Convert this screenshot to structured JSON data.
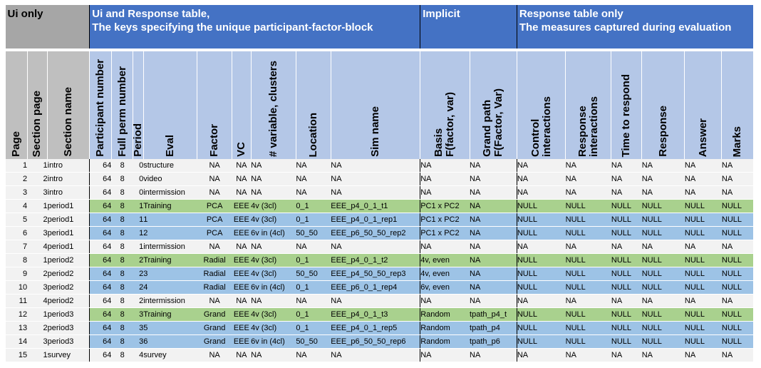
{
  "groups": {
    "ui_only": "Ui only",
    "keys_line1": "Ui and Response table,",
    "keys_line2": "The keys specifying the unique participant-factor-block",
    "implicit": "Implicit",
    "response_line1": "Response table only",
    "response_line2": "The measures captured during evaluation"
  },
  "columns": [
    {
      "key": "page",
      "label": "Page"
    },
    {
      "key": "section_page",
      "label": "Section page"
    },
    {
      "key": "section_name",
      "label": "Section name"
    },
    {
      "key": "participant",
      "label": "Participant number"
    },
    {
      "key": "full_perm",
      "label": "Full perm number"
    },
    {
      "key": "period",
      "label": "Period"
    },
    {
      "key": "eval",
      "label": "Eval"
    },
    {
      "key": "factor",
      "label": "Factor"
    },
    {
      "key": "vc",
      "label": "VC"
    },
    {
      "key": "var_clusters",
      "label": "# variable, clusters"
    },
    {
      "key": "location",
      "label": "Location"
    },
    {
      "key": "sim_name",
      "label": "Sim name"
    },
    {
      "key": "basis",
      "label": "Basis\nF(factor, var)"
    },
    {
      "key": "grand_path",
      "label": "Grand path\nF(Factor, Var)"
    },
    {
      "key": "control",
      "label": "Control\ninteractions"
    },
    {
      "key": "response_int",
      "label": "Response\ninteractions"
    },
    {
      "key": "time",
      "label": "Time to respond"
    },
    {
      "key": "response",
      "label": "Response"
    },
    {
      "key": "answer",
      "label": "Answer"
    },
    {
      "key": "marks",
      "label": "Marks"
    }
  ],
  "rows": [
    {
      "kind": "plain",
      "cells": [
        "1",
        "1",
        "intro",
        "64",
        "8",
        "0",
        "structure",
        "NA",
        "NA",
        "NA",
        "NA",
        "NA",
        "NA",
        "NA",
        "NA",
        "NA",
        "NA",
        "NA",
        "NA",
        "NA"
      ]
    },
    {
      "kind": "plain",
      "cells": [
        "2",
        "2",
        "intro",
        "64",
        "8",
        "0",
        "video",
        "NA",
        "NA",
        "NA",
        "NA",
        "NA",
        "NA",
        "NA",
        "NA",
        "NA",
        "NA",
        "NA",
        "NA",
        "NA"
      ]
    },
    {
      "kind": "plain",
      "cells": [
        "3",
        "3",
        "intro",
        "64",
        "8",
        "0",
        "intermission",
        "NA",
        "NA",
        "NA",
        "NA",
        "NA",
        "NA",
        "NA",
        "NA",
        "NA",
        "NA",
        "NA",
        "NA",
        "NA"
      ]
    },
    {
      "kind": "train",
      "cells": [
        "4",
        "1",
        "period1",
        "64",
        "8",
        "1",
        "Training",
        "PCA",
        "EEE",
        "4v (3cl)",
        "0_1",
        "EEE_p4_0_1_t1",
        "PC1 x PC2",
        "NA",
        "NULL",
        "NULL",
        "NULL",
        "NULL",
        "NULL",
        "NULL"
      ]
    },
    {
      "kind": "eval",
      "cells": [
        "5",
        "2",
        "period1",
        "64",
        "8",
        "1",
        "1",
        "PCA",
        "EEE",
        "4v (3cl)",
        "0_1",
        "EEE_p4_0_1_rep1",
        "PC1 x PC2",
        "NA",
        "NULL",
        "NULL",
        "NULL",
        "NULL",
        "NULL",
        "NULL"
      ]
    },
    {
      "kind": "eval",
      "cells": [
        "6",
        "3",
        "period1",
        "64",
        "8",
        "1",
        "2",
        "PCA",
        "EEE",
        "6v in (4cl)",
        "50_50",
        "EEE_p6_50_50_rep2",
        "PC1 x PC2",
        "NA",
        "NULL",
        "NULL",
        "NULL",
        "NULL",
        "NULL",
        "NULL"
      ]
    },
    {
      "kind": "plain",
      "cells": [
        "7",
        "4",
        "period1",
        "64",
        "8",
        "1",
        "intermission",
        "NA",
        "NA",
        "NA",
        "NA",
        "NA",
        "NA",
        "NA",
        "NA",
        "NA",
        "NA",
        "NA",
        "NA",
        "NA"
      ]
    },
    {
      "kind": "train",
      "cells": [
        "8",
        "1",
        "period2",
        "64",
        "8",
        "2",
        "Training",
        "Radial",
        "EEE",
        "4v (3cl)",
        "0_1",
        "EEE_p4_0_1_t2",
        "4v, even",
        "NA",
        "NULL",
        "NULL",
        "NULL",
        "NULL",
        "NULL",
        "NULL"
      ]
    },
    {
      "kind": "eval",
      "cells": [
        "9",
        "2",
        "period2",
        "64",
        "8",
        "2",
        "3",
        "Radial",
        "EEE",
        "4v (3cl)",
        "50_50",
        "EEE_p4_50_50_rep3",
        "4v, even",
        "NA",
        "NULL",
        "NULL",
        "NULL",
        "NULL",
        "NULL",
        "NULL"
      ]
    },
    {
      "kind": "eval",
      "cells": [
        "10",
        "3",
        "period2",
        "64",
        "8",
        "2",
        "4",
        "Radial",
        "EEE",
        "6v in (4cl)",
        "0_1",
        "EEE_p6_0_1_rep4",
        "6v, even",
        "NA",
        "NULL",
        "NULL",
        "NULL",
        "NULL",
        "NULL",
        "NULL"
      ]
    },
    {
      "kind": "plain",
      "cells": [
        "11",
        "4",
        "period2",
        "64",
        "8",
        "2",
        "intermission",
        "NA",
        "NA",
        "NA",
        "NA",
        "NA",
        "NA",
        "NA",
        "NA",
        "NA",
        "NA",
        "NA",
        "NA",
        "NA"
      ]
    },
    {
      "kind": "train",
      "cells": [
        "12",
        "1",
        "period3",
        "64",
        "8",
        "3",
        "Training",
        "Grand",
        "EEE",
        "4v (3cl)",
        "0_1",
        "EEE_p4_0_1_t3",
        "Random",
        "tpath_p4_t",
        "NULL",
        "NULL",
        "NULL",
        "NULL",
        "NULL",
        "NULL"
      ]
    },
    {
      "kind": "eval",
      "cells": [
        "13",
        "2",
        "period3",
        "64",
        "8",
        "3",
        "5",
        "Grand",
        "EEE",
        "4v (3cl)",
        "0_1",
        "EEE_p4_0_1_rep5",
        "Random",
        "tpath_p4",
        "NULL",
        "NULL",
        "NULL",
        "NULL",
        "NULL",
        "NULL"
      ]
    },
    {
      "kind": "eval",
      "cells": [
        "14",
        "3",
        "period3",
        "64",
        "8",
        "3",
        "6",
        "Grand",
        "EEE",
        "6v in (4cl)",
        "50_50",
        "EEE_p6_50_50_rep6",
        "Random",
        "tpath_p6",
        "NULL",
        "NULL",
        "NULL",
        "NULL",
        "NULL",
        "NULL"
      ]
    },
    {
      "kind": "plain",
      "cells": [
        "15",
        "1",
        "survey",
        "64",
        "8",
        "4",
        "survey",
        "NA",
        "NA",
        "NA",
        "NA",
        "NA",
        "NA",
        "NA",
        "NA",
        "NA",
        "NA",
        "NA",
        "NA",
        "NA"
      ]
    }
  ]
}
